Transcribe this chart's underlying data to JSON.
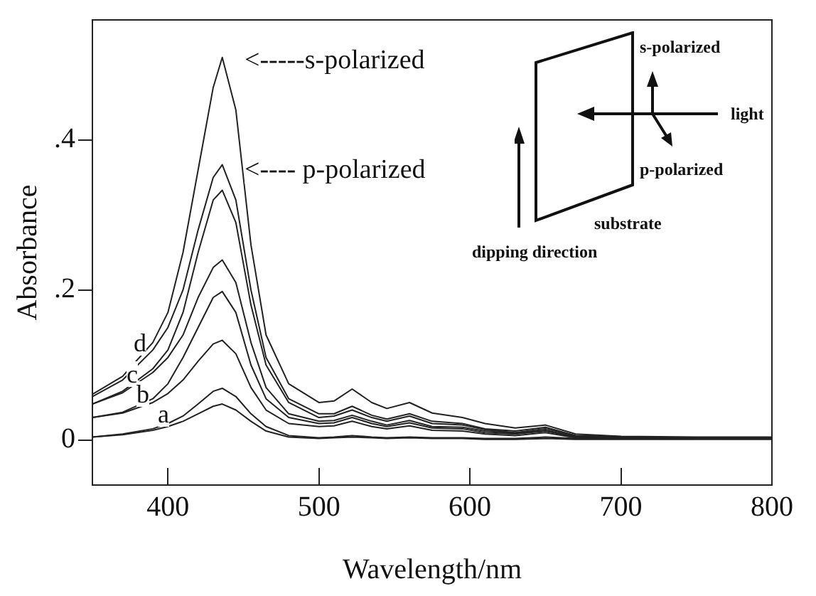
{
  "chart_data": {
    "type": "line",
    "xlabel": "Wavelength/nm",
    "ylabel": "Absorbance",
    "x": [
      350,
      370,
      390,
      400,
      410,
      420,
      430,
      436,
      445,
      455,
      465,
      480,
      500,
      510,
      522,
      535,
      545,
      560,
      575,
      595,
      610,
      630,
      650,
      670,
      700,
      750,
      800
    ],
    "xlim": [
      350,
      800
    ],
    "xticks": [
      400,
      500,
      600,
      700,
      800
    ],
    "ylim": [
      -0.06,
      0.56
    ],
    "yticks": [
      0,
      {
        "value": 0.2,
        "label": ".2"
      },
      {
        "value": 0.4,
        "label": ".4"
      }
    ],
    "grid": false,
    "legend": false,
    "marker": "none",
    "line_style": "solid",
    "series": [
      {
        "color": "#222222",
        "values": [
          0.061,
          0.085,
          0.13,
          0.17,
          0.25,
          0.36,
          0.47,
          0.51,
          0.44,
          0.26,
          0.14,
          0.075,
          0.05,
          0.052,
          0.068,
          0.05,
          0.042,
          0.05,
          0.036,
          0.03,
          0.022,
          0.016,
          0.02,
          0.008,
          0.005,
          0.004,
          0.004
        ]
      },
      {
        "color": "#222222",
        "values": [
          0.058,
          0.08,
          0.12,
          0.15,
          0.2,
          0.28,
          0.35,
          0.367,
          0.32,
          0.2,
          0.11,
          0.055,
          0.035,
          0.035,
          0.045,
          0.033,
          0.028,
          0.035,
          0.025,
          0.022,
          0.015,
          0.012,
          0.017,
          0.006,
          0.004,
          0.003,
          0.003
        ]
      },
      {
        "color": "#222222",
        "values": [
          0.048,
          0.065,
          0.095,
          0.12,
          0.17,
          0.25,
          0.32,
          0.333,
          0.29,
          0.18,
          0.1,
          0.05,
          0.03,
          0.032,
          0.04,
          0.03,
          0.025,
          0.032,
          0.022,
          0.02,
          0.014,
          0.01,
          0.015,
          0.006,
          0.004,
          0.003,
          0.002
        ]
      },
      {
        "color": "#222222",
        "values": [
          0.048,
          0.063,
          0.09,
          0.11,
          0.14,
          0.19,
          0.23,
          0.24,
          0.21,
          0.13,
          0.07,
          0.035,
          0.025,
          0.026,
          0.033,
          0.025,
          0.02,
          0.026,
          0.018,
          0.017,
          0.012,
          0.009,
          0.013,
          0.005,
          0.003,
          0.002,
          0.002
        ]
      },
      {
        "color": "#222222",
        "values": [
          0.03,
          0.037,
          0.055,
          0.075,
          0.11,
          0.15,
          0.19,
          0.198,
          0.17,
          0.1,
          0.055,
          0.03,
          0.022,
          0.023,
          0.03,
          0.022,
          0.018,
          0.023,
          0.016,
          0.015,
          0.01,
          0.008,
          0.012,
          0.004,
          0.003,
          0.002,
          0.002
        ]
      },
      {
        "color": "#222222",
        "values": [
          0.03,
          0.036,
          0.05,
          0.062,
          0.08,
          0.105,
          0.128,
          0.133,
          0.115,
          0.07,
          0.04,
          0.022,
          0.018,
          0.019,
          0.025,
          0.018,
          0.015,
          0.019,
          0.013,
          0.012,
          0.008,
          0.006,
          0.01,
          0.003,
          0.002,
          0.002,
          0.002
        ]
      },
      {
        "color": "#222222",
        "values": [
          0.004,
          0.008,
          0.015,
          0.022,
          0.032,
          0.048,
          0.065,
          0.069,
          0.058,
          0.035,
          0.018,
          0.006,
          0.003,
          0.004,
          0.006,
          0.004,
          0.003,
          0.004,
          0.003,
          0.003,
          0.002,
          0.002,
          0.004,
          0.002,
          0.002,
          0.002,
          0.002
        ]
      },
      {
        "color": "#222222",
        "values": [
          0.004,
          0.007,
          0.013,
          0.018,
          0.025,
          0.035,
          0.045,
          0.048,
          0.04,
          0.025,
          0.012,
          0.004,
          0.002,
          0.003,
          0.004,
          0.003,
          0.002,
          0.003,
          0.002,
          0.002,
          0.001,
          0.001,
          0.002,
          0.001,
          0.001,
          0.001,
          0.001
        ]
      }
    ],
    "annotations": [
      "<-----s-polarized",
      "<---- p-polarized",
      "d",
      "c",
      "b",
      "a",
      "s-polarized",
      "light",
      "p-polarized",
      "substrate",
      "dipping direction"
    ]
  }
}
